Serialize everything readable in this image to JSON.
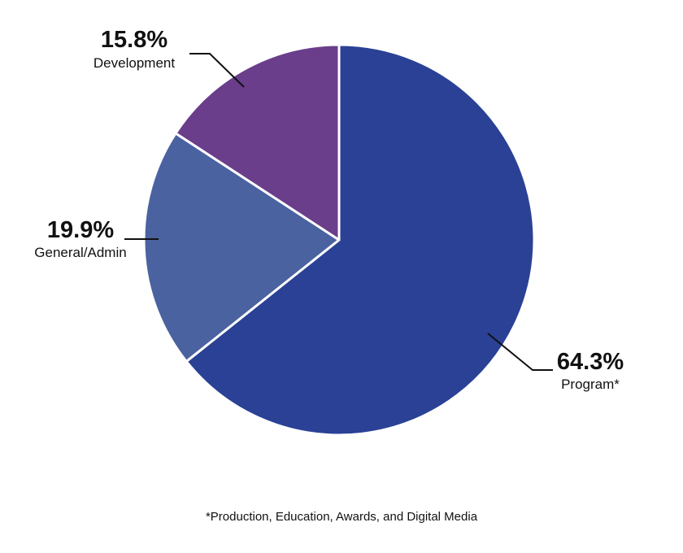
{
  "chart_data": {
    "type": "pie",
    "slices": [
      {
        "label": "Program*",
        "value": 64.3,
        "value_label": "64.3%",
        "color": "#2a4195"
      },
      {
        "label": "General/Admin",
        "value": 19.9,
        "value_label": "19.9%",
        "color": "#4b62a0"
      },
      {
        "label": "Development",
        "value": 15.8,
        "value_label": "15.8%",
        "color": "#6a3e8a"
      }
    ],
    "start_angle": "12 o'clock",
    "direction": "clockwise",
    "slice_border_color": "#ffffff"
  },
  "footnote": "*Production, Education, Awards, and Digital Media"
}
